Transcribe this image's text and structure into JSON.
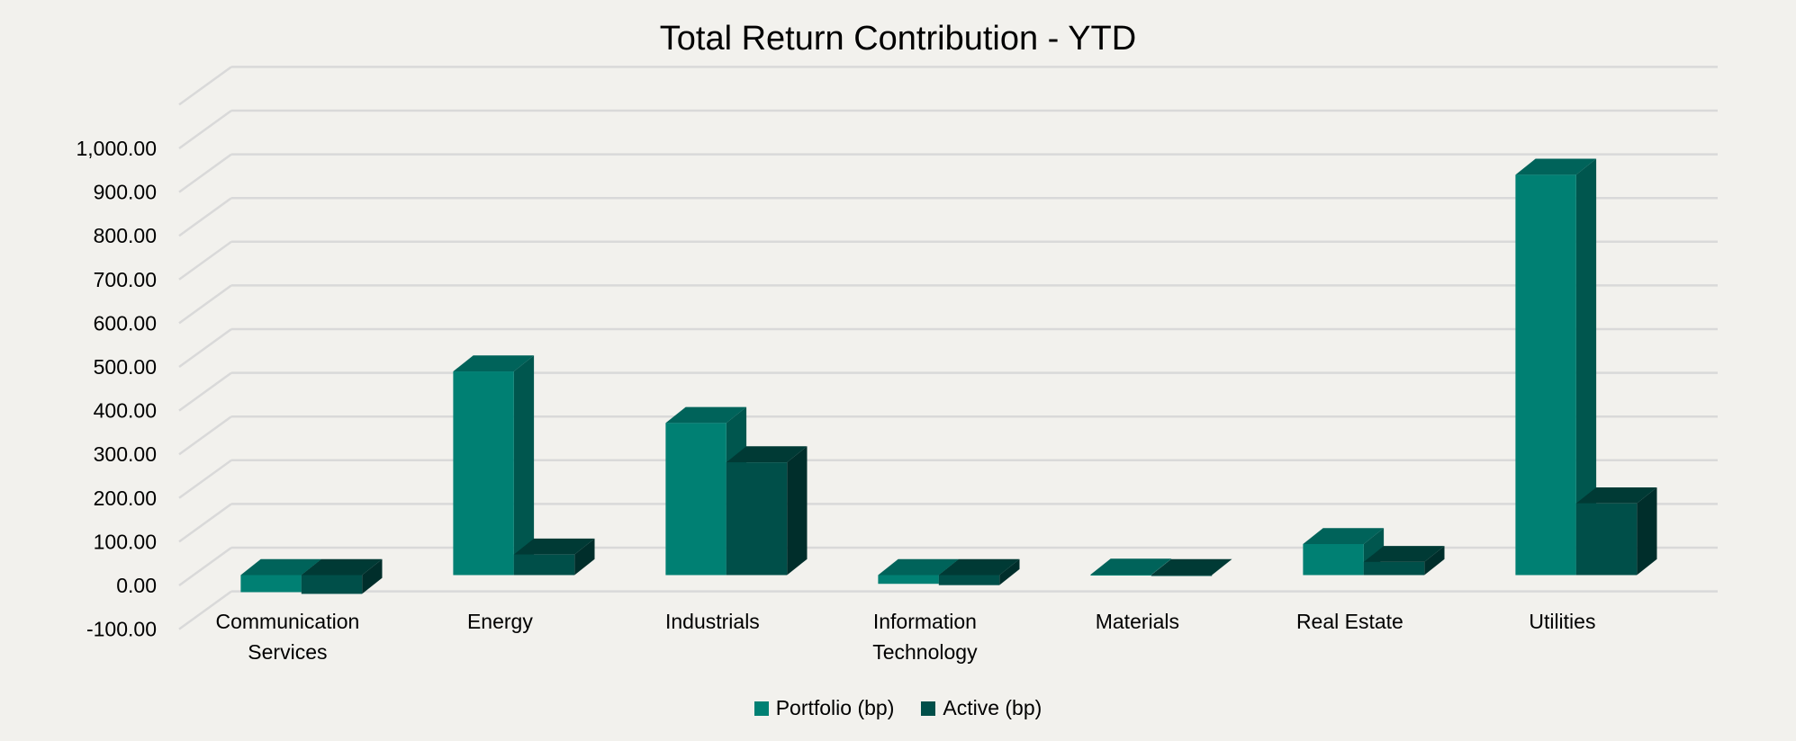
{
  "chart_data": {
    "type": "bar",
    "title": "Total Return Contribution - YTD",
    "xlabel": "",
    "ylabel": "",
    "categories": [
      [
        "Communication",
        "Services"
      ],
      [
        "Energy"
      ],
      [
        "Industrials"
      ],
      [
        "Information",
        "Technology"
      ],
      [
        "Materials"
      ],
      [
        "Real Estate"
      ],
      [
        "Utilities"
      ]
    ],
    "series": [
      {
        "name": "Portfolio (bp)",
        "color": "#008073",
        "top_color": "#00635a",
        "side_color": "#00564e",
        "values": [
          -39,
          466,
          348,
          -20,
          1,
          71,
          916
        ]
      },
      {
        "name": "Active (bp)",
        "color": "#004f49",
        "top_color": "#003a35",
        "side_color": "#002e2b",
        "values": [
          -43,
          47,
          258,
          -23,
          0,
          30,
          164
        ]
      }
    ],
    "ylim": [
      -100,
      1100
    ],
    "yticks": [
      "-100.00",
      "0.00",
      "100.00",
      "200.00",
      "300.00",
      "400.00",
      "500.00",
      "600.00",
      "700.00",
      "800.00",
      "900.00",
      "1,000.00"
    ],
    "ytick_values": [
      -100,
      0,
      100,
      200,
      300,
      400,
      500,
      600,
      700,
      800,
      900,
      1000
    ],
    "grid": true,
    "legend_position": "bottom"
  }
}
